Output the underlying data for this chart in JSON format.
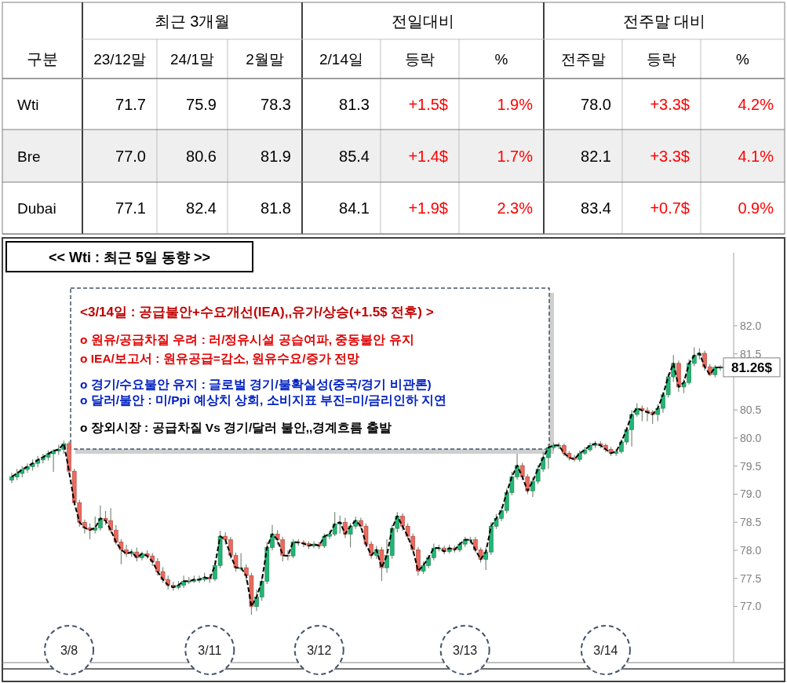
{
  "chart_data": [
    {
      "type": "other",
      "ylabel": "구분",
      "annotations": [
        "최근 3개월",
        "전일대비",
        "전주말 대비"
      ],
      "categories": [
        "23/12말",
        "24/1말",
        "2월말",
        "2/14일",
        "등락",
        "%",
        "전주말",
        "등락",
        "%"
      ],
      "colors": [
        "#000000",
        "#000000",
        "#000000",
        "#000000",
        "#ff0000",
        "#ff0000",
        "#000000",
        "#ff0000",
        "#ff0000"
      ],
      "y_categories": [
        "Wti",
        "Bre",
        "Dubai"
      ],
      "cell_labels": [
        [
          "71.7",
          "75.9",
          "78.3",
          "81.3",
          "+1.5$",
          "1.9%",
          "78.0",
          "+3.3$",
          "4.2%"
        ],
        [
          "77.0",
          "80.6",
          "81.9",
          "85.4",
          "+1.4$",
          "1.7%",
          "82.1",
          "+3.3$",
          "4.1%"
        ],
        [
          "77.1",
          "82.4",
          "81.8",
          "84.1",
          "+1.9$",
          "2.3%",
          "83.4",
          "+0.7$",
          "0.9%"
        ]
      ]
    },
    {
      "type": "candlestick",
      "title": "<< Wti : 최근 5일 동향 >>",
      "ylim": [
        76.0,
        83.3
      ],
      "yticks": [
        {
          "value": 77.0,
          "label": "77.0"
        },
        {
          "value": 77.5,
          "label": "77.5"
        },
        {
          "value": 78.0,
          "label": "78.0"
        },
        {
          "value": 78.5,
          "label": "78.5"
        },
        {
          "value": 79.0,
          "label": "79.0"
        },
        {
          "value": 79.5,
          "label": "79.5"
        },
        {
          "value": 80.0,
          "label": "80.0"
        },
        {
          "value": 80.5,
          "label": "80.5"
        },
        {
          "value": 81.5,
          "label": "81.5"
        },
        {
          "value": 82.0,
          "label": "82.0"
        }
      ],
      "annotations": [
        "<3/14일 : 공급불안+수요개선(IEA),,유가/상승(+1.5$ 전후) >",
        "o 원유/공급차질 우려 : 러/정유시설 공습여파, 중동불안 유지",
        "o IEA/보고서 : 원유공급=감소, 원유수요/증가 전망",
        "o 경기/수요불안 유지 : 글로벌 경기/불확실성(중국/경기 비관론)",
        "o 달러/불안 : 미/Ppi 예상치 상회, 소비지표 부진=미/금리인하 지연",
        "o 장외시장 : 공급차질 Vs 경기/달러 불안,,경계흐름 출발",
        "81.26$"
      ],
      "categories": [
        null,
        null,
        null,
        null,
        null,
        null,
        null,
        null,
        null,
        null,
        null,
        "3/8",
        null,
        null,
        null,
        null,
        null,
        null,
        null,
        null,
        null,
        null,
        null,
        null,
        null,
        null,
        null,
        null,
        null,
        null,
        null,
        null,
        null,
        null,
        null,
        null,
        null,
        null,
        "3/11",
        null,
        null,
        null,
        null,
        null,
        null,
        null,
        null,
        null,
        null,
        null,
        null,
        null,
        null,
        null,
        null,
        null,
        null,
        null,
        null,
        "3/12",
        null,
        null,
        null,
        null,
        null,
        null,
        null,
        null,
        null,
        null,
        null,
        null,
        null,
        null,
        null,
        null,
        null,
        null,
        null,
        null,
        null,
        null,
        null,
        null,
        null,
        null,
        null,
        "3/13",
        null,
        null,
        null,
        null,
        null,
        null,
        null,
        null,
        null,
        null,
        null,
        null,
        null,
        null,
        null,
        null,
        null,
        null,
        null,
        null,
        null,
        null,
        null,
        null,
        null,
        null,
        "3/14",
        null,
        null,
        null,
        null,
        null,
        null,
        null,
        null,
        null,
        null,
        null,
        null,
        null,
        null,
        null,
        null,
        null,
        null,
        null,
        null,
        null,
        null
      ],
      "ohlc": [
        [
          79.25,
          79.38,
          79.2,
          79.31
        ],
        [
          79.31,
          79.45,
          79.25,
          79.37
        ],
        [
          79.37,
          79.5,
          79.3,
          79.44
        ],
        [
          79.44,
          79.55,
          79.38,
          79.49
        ],
        [
          79.49,
          79.62,
          79.42,
          79.55
        ],
        [
          79.55,
          79.68,
          79.48,
          79.61
        ],
        [
          79.61,
          79.72,
          79.55,
          79.66
        ],
        [
          79.66,
          79.78,
          79.6,
          79.72
        ],
        [
          79.72,
          79.8,
          79.4,
          79.77
        ],
        [
          79.77,
          79.88,
          79.7,
          79.8
        ],
        [
          79.8,
          79.95,
          79.72,
          79.9
        ],
        [
          79.9,
          79.94,
          79.35,
          79.41
        ],
        [
          79.41,
          79.45,
          78.8,
          78.85
        ],
        [
          78.85,
          78.9,
          78.42,
          78.5
        ],
        [
          78.5,
          78.55,
          78.3,
          78.4
        ],
        [
          78.4,
          78.48,
          78.2,
          78.36
        ],
        [
          78.36,
          78.6,
          78.3,
          78.4
        ],
        [
          78.4,
          78.8,
          78.35,
          78.57
        ],
        [
          78.57,
          78.7,
          78.45,
          78.53
        ],
        [
          78.53,
          78.75,
          78.3,
          78.36
        ],
        [
          78.36,
          78.45,
          78.1,
          78.15
        ],
        [
          78.15,
          78.2,
          77.75,
          78.01
        ],
        [
          78.01,
          78.1,
          77.88,
          77.94
        ],
        [
          77.94,
          78.02,
          77.88,
          77.97
        ],
        [
          77.97,
          78.05,
          77.8,
          77.87
        ],
        [
          77.87,
          77.98,
          77.82,
          77.94
        ],
        [
          77.94,
          78.0,
          77.85,
          77.9
        ],
        [
          77.9,
          77.95,
          77.72,
          77.8
        ],
        [
          77.8,
          77.86,
          77.55,
          77.62
        ],
        [
          77.62,
          77.7,
          77.42,
          77.48
        ],
        [
          77.48,
          77.55,
          77.3,
          77.38
        ],
        [
          77.38,
          77.44,
          77.28,
          77.34
        ],
        [
          77.34,
          77.45,
          77.3,
          77.38
        ],
        [
          77.38,
          77.55,
          77.33,
          77.45
        ],
        [
          77.45,
          77.52,
          77.4,
          77.45
        ],
        [
          77.45,
          77.55,
          77.42,
          77.48
        ],
        [
          77.48,
          77.55,
          77.42,
          77.48
        ],
        [
          77.48,
          77.6,
          77.44,
          77.52
        ],
        [
          77.52,
          77.58,
          77.42,
          77.49
        ],
        [
          77.49,
          77.82,
          77.45,
          77.73
        ],
        [
          77.73,
          78.35,
          77.68,
          78.25
        ],
        [
          78.25,
          78.32,
          78.1,
          78.19
        ],
        [
          78.19,
          78.24,
          77.85,
          77.91
        ],
        [
          77.91,
          77.96,
          77.62,
          77.69
        ],
        [
          77.69,
          77.95,
          77.64,
          77.69
        ],
        [
          77.69,
          77.75,
          77.45,
          77.55
        ],
        [
          77.55,
          77.6,
          76.85,
          77.0
        ],
        [
          77.0,
          77.3,
          76.92,
          77.17
        ],
        [
          77.17,
          77.55,
          77.1,
          77.45
        ],
        [
          77.45,
          78.15,
          77.4,
          78.05
        ],
        [
          78.05,
          78.45,
          78.0,
          78.29
        ],
        [
          78.29,
          78.36,
          78.1,
          78.19
        ],
        [
          78.19,
          78.24,
          77.8,
          77.91
        ],
        [
          77.91,
          78.0,
          77.82,
          77.9
        ],
        [
          77.9,
          78.2,
          77.86,
          78.15
        ],
        [
          78.15,
          78.2,
          78.08,
          78.14
        ],
        [
          78.14,
          78.18,
          78.06,
          78.12
        ],
        [
          78.12,
          78.16,
          78.02,
          78.08
        ],
        [
          78.08,
          78.16,
          78.04,
          78.11
        ],
        [
          78.11,
          78.15,
          78.02,
          78.08
        ],
        [
          78.08,
          78.3,
          78.04,
          78.25
        ],
        [
          78.25,
          78.35,
          78.2,
          78.29
        ],
        [
          78.29,
          78.68,
          78.25,
          78.47
        ],
        [
          78.47,
          78.62,
          78.3,
          78.5
        ],
        [
          78.5,
          78.58,
          78.22,
          78.29
        ],
        [
          78.29,
          78.48,
          78.05,
          78.43
        ],
        [
          78.43,
          78.6,
          78.38,
          78.53
        ],
        [
          78.53,
          78.58,
          78.38,
          78.43
        ],
        [
          78.43,
          78.48,
          78.05,
          78.11
        ],
        [
          78.11,
          78.16,
          77.85,
          77.91
        ],
        [
          77.91,
          78.08,
          77.85,
          78.01
        ],
        [
          78.01,
          78.06,
          77.45,
          77.69
        ],
        [
          77.69,
          78.2,
          77.6,
          77.91
        ],
        [
          77.91,
          78.45,
          77.85,
          78.39
        ],
        [
          78.39,
          78.68,
          78.32,
          78.61
        ],
        [
          78.61,
          78.66,
          78.35,
          78.43
        ],
        [
          78.43,
          78.48,
          78.2,
          78.25
        ],
        [
          78.25,
          78.3,
          77.95,
          78.01
        ],
        [
          78.01,
          78.06,
          77.55,
          77.63
        ],
        [
          77.63,
          77.8,
          77.58,
          77.73
        ],
        [
          77.73,
          77.92,
          77.68,
          77.87
        ],
        [
          77.87,
          78.12,
          77.82,
          78.04
        ],
        [
          78.04,
          78.1,
          77.98,
          78.04
        ],
        [
          78.04,
          78.08,
          77.93,
          77.98
        ],
        [
          77.98,
          78.1,
          77.94,
          78.04
        ],
        [
          78.04,
          78.08,
          77.96,
          78.01
        ],
        [
          78.01,
          78.15,
          77.97,
          78.11
        ],
        [
          78.11,
          78.24,
          78.06,
          78.19
        ],
        [
          78.19,
          78.24,
          78.12,
          78.19
        ],
        [
          78.19,
          78.24,
          77.96,
          78.01
        ],
        [
          78.01,
          78.05,
          77.78,
          77.84
        ],
        [
          77.84,
          78.05,
          77.65,
          77.97
        ],
        [
          77.97,
          78.5,
          77.92,
          78.43
        ],
        [
          78.43,
          78.65,
          78.38,
          78.57
        ],
        [
          78.57,
          78.78,
          78.52,
          78.71
        ],
        [
          78.71,
          79.1,
          78.66,
          79.03
        ],
        [
          79.03,
          79.4,
          78.98,
          79.31
        ],
        [
          79.31,
          79.72,
          79.26,
          79.51
        ],
        [
          79.51,
          79.56,
          79.25,
          79.31
        ],
        [
          79.31,
          79.36,
          79.0,
          79.06
        ],
        [
          79.06,
          79.3,
          78.95,
          79.23
        ],
        [
          79.23,
          79.52,
          79.18,
          79.45
        ],
        [
          79.45,
          79.75,
          79.4,
          79.65
        ],
        [
          79.65,
          79.9,
          79.45,
          79.83
        ],
        [
          79.83,
          79.92,
          79.78,
          79.87
        ],
        [
          79.87,
          79.92,
          79.8,
          79.87
        ],
        [
          79.87,
          79.9,
          79.68,
          79.73
        ],
        [
          79.73,
          79.77,
          79.6,
          79.65
        ],
        [
          79.65,
          79.7,
          79.58,
          79.62
        ],
        [
          79.62,
          79.78,
          79.58,
          79.73
        ],
        [
          79.73,
          79.84,
          79.7,
          79.79
        ],
        [
          79.79,
          79.92,
          79.75,
          79.87
        ],
        [
          79.87,
          79.95,
          79.82,
          79.9
        ],
        [
          79.9,
          79.94,
          79.82,
          79.87
        ],
        [
          79.87,
          79.9,
          79.75,
          79.8
        ],
        [
          79.8,
          79.84,
          79.68,
          79.73
        ],
        [
          79.73,
          79.8,
          79.68,
          79.76
        ],
        [
          79.76,
          79.98,
          79.72,
          79.93
        ],
        [
          79.93,
          80.2,
          79.88,
          80.15
        ],
        [
          80.15,
          80.5,
          79.85,
          80.42
        ],
        [
          80.42,
          80.62,
          80.38,
          80.53
        ],
        [
          80.53,
          80.58,
          80.3,
          80.49
        ],
        [
          80.49,
          80.55,
          80.3,
          80.46
        ],
        [
          80.46,
          80.5,
          80.25,
          80.42
        ],
        [
          80.42,
          80.6,
          80.3,
          80.53
        ],
        [
          80.53,
          80.82,
          80.45,
          80.77
        ],
        [
          80.77,
          81.15,
          80.72,
          81.09
        ],
        [
          81.09,
          81.48,
          81.0,
          81.33
        ],
        [
          81.33,
          81.38,
          80.82,
          80.91
        ],
        [
          80.91,
          81.05,
          80.8,
          80.99
        ],
        [
          80.99,
          81.4,
          80.95,
          81.33
        ],
        [
          81.33,
          81.62,
          81.28,
          81.47
        ],
        [
          81.47,
          81.6,
          81.4,
          81.51
        ],
        [
          81.51,
          81.56,
          81.2,
          81.27
        ],
        [
          81.27,
          81.32,
          81.1,
          81.13
        ],
        [
          81.13,
          81.3,
          81.08,
          81.26
        ],
        [
          81.26,
          81.3,
          81.2,
          81.26
        ]
      ],
      "series": [
        {
          "type": "line",
          "color": "#000000",
          "line_style": "dashed",
          "values": [
            79.31,
            79.37,
            79.44,
            79.49,
            79.55,
            79.61,
            79.66,
            79.72,
            79.77,
            79.8,
            79.9,
            79.41,
            78.85,
            78.5,
            78.4,
            78.36,
            78.4,
            78.57,
            78.53,
            78.36,
            78.15,
            78.01,
            77.94,
            77.97,
            77.87,
            77.94,
            77.9,
            77.8,
            77.62,
            77.48,
            77.38,
            77.34,
            77.38,
            77.45,
            77.45,
            77.48,
            77.48,
            77.52,
            77.49,
            77.73,
            78.25,
            78.19,
            77.91,
            77.69,
            77.69,
            77.55,
            77.0,
            77.17,
            77.45,
            78.05,
            78.29,
            78.19,
            77.91,
            77.9,
            78.15,
            78.14,
            78.12,
            78.08,
            78.11,
            78.08,
            78.25,
            78.29,
            78.47,
            78.5,
            78.29,
            78.43,
            78.53,
            78.43,
            78.11,
            77.91,
            78.01,
            77.69,
            77.91,
            78.39,
            78.61,
            78.43,
            78.25,
            78.01,
            77.63,
            77.73,
            77.87,
            78.04,
            78.04,
            77.98,
            78.04,
            78.01,
            78.11,
            78.19,
            78.19,
            78.01,
            77.84,
            77.97,
            78.43,
            78.57,
            78.71,
            79.03,
            79.31,
            79.51,
            79.31,
            79.06,
            79.23,
            79.45,
            79.65,
            79.83,
            79.87,
            79.87,
            79.73,
            79.65,
            79.62,
            79.73,
            79.79,
            79.87,
            79.9,
            79.87,
            79.8,
            79.73,
            79.76,
            79.93,
            80.15,
            80.42,
            80.53,
            80.49,
            80.46,
            80.42,
            80.53,
            80.77,
            81.09,
            81.33,
            80.91,
            80.99,
            81.33,
            81.47,
            81.51,
            81.27,
            81.13,
            81.26,
            81.26
          ]
        }
      ]
    }
  ]
}
